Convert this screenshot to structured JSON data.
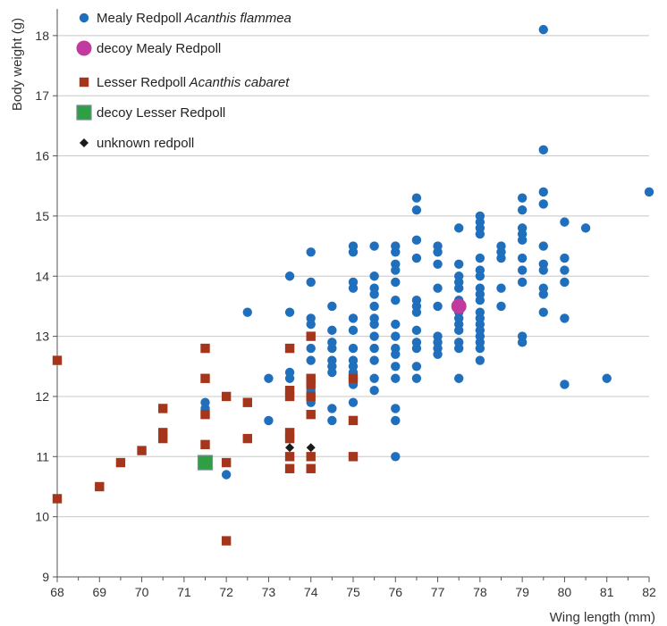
{
  "chart_data": {
    "type": "scatter",
    "title": "",
    "xlabel": "Wing length (mm)",
    "ylabel": "Body weight (g)",
    "xlim": [
      68,
      82
    ],
    "ylim": [
      9,
      18.5
    ],
    "x_ticks": [
      68,
      69,
      70,
      71,
      72,
      73,
      74,
      75,
      76,
      77,
      78,
      79,
      80,
      81,
      82
    ],
    "y_ticks": [
      9,
      10,
      11,
      12,
      13,
      14,
      15,
      16,
      17,
      18
    ],
    "grid": "horizontal",
    "legend_position": "top-left",
    "series": [
      {
        "key": "mealy",
        "name": "Mealy Redpoll",
        "name_italic": "Acanthis flammea",
        "marker": "circle",
        "color": "#1f6fbd",
        "points": [
          [
            71.5,
            11.9
          ],
          [
            71.5,
            11.8
          ],
          [
            72,
            10.7
          ],
          [
            72.5,
            13.4
          ],
          [
            73,
            12.3
          ],
          [
            73,
            11.6
          ],
          [
            73.5,
            14.0
          ],
          [
            73.5,
            13.4
          ],
          [
            73.5,
            12.4
          ],
          [
            73.5,
            12.3
          ],
          [
            73.5,
            11.3
          ],
          [
            74,
            14.4
          ],
          [
            74,
            13.9
          ],
          [
            74,
            13.3
          ],
          [
            74,
            13.2
          ],
          [
            74,
            12.8
          ],
          [
            74,
            12.6
          ],
          [
            74,
            12.1
          ],
          [
            74,
            11.9
          ],
          [
            74.5,
            13.5
          ],
          [
            74.5,
            13.1
          ],
          [
            74.5,
            12.9
          ],
          [
            74.5,
            12.8
          ],
          [
            74.5,
            12.6
          ],
          [
            74.5,
            12.5
          ],
          [
            74.5,
            12.4
          ],
          [
            74.5,
            11.8
          ],
          [
            74.5,
            11.6
          ],
          [
            75,
            14.5
          ],
          [
            75,
            14.4
          ],
          [
            75,
            13.9
          ],
          [
            75,
            13.8
          ],
          [
            75,
            13.3
          ],
          [
            75,
            13.1
          ],
          [
            75,
            12.8
          ],
          [
            75,
            12.6
          ],
          [
            75,
            12.5
          ],
          [
            75,
            12.4
          ],
          [
            75,
            12.3
          ],
          [
            75,
            12.2
          ],
          [
            75,
            11.9
          ],
          [
            75.5,
            14.5
          ],
          [
            75.5,
            14.0
          ],
          [
            75.5,
            13.8
          ],
          [
            75.5,
            13.7
          ],
          [
            75.5,
            13.5
          ],
          [
            75.5,
            13.3
          ],
          [
            75.5,
            13.2
          ],
          [
            75.5,
            13.0
          ],
          [
            75.5,
            12.8
          ],
          [
            75.5,
            12.6
          ],
          [
            75.5,
            12.3
          ],
          [
            75.5,
            12.1
          ],
          [
            76,
            14.5
          ],
          [
            76,
            14.4
          ],
          [
            76,
            14.2
          ],
          [
            76,
            14.1
          ],
          [
            76,
            13.9
          ],
          [
            76,
            13.6
          ],
          [
            76,
            13.2
          ],
          [
            76,
            13.0
          ],
          [
            76,
            12.8
          ],
          [
            76,
            12.7
          ],
          [
            76,
            12.5
          ],
          [
            76,
            12.3
          ],
          [
            76,
            11.8
          ],
          [
            76,
            11.6
          ],
          [
            76,
            11.0
          ],
          [
            76.5,
            15.3
          ],
          [
            76.5,
            15.1
          ],
          [
            76.5,
            14.6
          ],
          [
            76.5,
            14.3
          ],
          [
            76.5,
            13.6
          ],
          [
            76.5,
            13.5
          ],
          [
            76.5,
            13.4
          ],
          [
            76.5,
            13.1
          ],
          [
            76.5,
            12.9
          ],
          [
            76.5,
            12.8
          ],
          [
            76.5,
            12.5
          ],
          [
            76.5,
            12.3
          ],
          [
            77,
            14.5
          ],
          [
            77,
            14.4
          ],
          [
            77,
            14.2
          ],
          [
            77,
            13.8
          ],
          [
            77,
            13.5
          ],
          [
            77,
            13.0
          ],
          [
            77,
            12.9
          ],
          [
            77,
            12.8
          ],
          [
            77,
            12.7
          ],
          [
            77.5,
            14.8
          ],
          [
            77.5,
            14.2
          ],
          [
            77.5,
            14.0
          ],
          [
            77.5,
            13.9
          ],
          [
            77.5,
            13.8
          ],
          [
            77.5,
            13.6
          ],
          [
            77.5,
            13.4
          ],
          [
            77.5,
            13.3
          ],
          [
            77.5,
            13.2
          ],
          [
            77.5,
            13.1
          ],
          [
            77.5,
            12.9
          ],
          [
            77.5,
            12.8
          ],
          [
            77.5,
            12.3
          ],
          [
            78,
            15.0
          ],
          [
            78,
            14.9
          ],
          [
            78,
            14.8
          ],
          [
            78,
            14.7
          ],
          [
            78,
            14.3
          ],
          [
            78,
            14.1
          ],
          [
            78,
            14.0
          ],
          [
            78,
            13.8
          ],
          [
            78,
            13.7
          ],
          [
            78,
            13.6
          ],
          [
            78,
            13.4
          ],
          [
            78,
            13.3
          ],
          [
            78,
            13.2
          ],
          [
            78,
            13.1
          ],
          [
            78,
            13.0
          ],
          [
            78,
            12.9
          ],
          [
            78,
            12.8
          ],
          [
            78,
            12.6
          ],
          [
            78.5,
            14.5
          ],
          [
            78.5,
            14.4
          ],
          [
            78.5,
            14.3
          ],
          [
            78.5,
            13.8
          ],
          [
            78.5,
            13.5
          ],
          [
            79,
            15.3
          ],
          [
            79,
            15.1
          ],
          [
            79,
            14.8
          ],
          [
            79,
            14.7
          ],
          [
            79,
            14.6
          ],
          [
            79,
            14.3
          ],
          [
            79,
            14.1
          ],
          [
            79,
            13.9
          ],
          [
            79,
            13.0
          ],
          [
            79,
            12.9
          ],
          [
            79.5,
            18.1
          ],
          [
            79.5,
            16.1
          ],
          [
            79.5,
            15.4
          ],
          [
            79.5,
            15.2
          ],
          [
            79.5,
            14.5
          ],
          [
            79.5,
            14.2
          ],
          [
            79.5,
            14.1
          ],
          [
            79.5,
            13.8
          ],
          [
            79.5,
            13.7
          ],
          [
            79.5,
            13.4
          ],
          [
            80,
            14.9
          ],
          [
            80,
            14.3
          ],
          [
            80,
            14.1
          ],
          [
            80,
            13.9
          ],
          [
            80,
            13.3
          ],
          [
            80,
            12.2
          ],
          [
            80.5,
            14.8
          ],
          [
            81,
            12.3
          ],
          [
            82,
            15.4
          ]
        ]
      },
      {
        "key": "mealy-decoy",
        "name": "decoy Mealy Redpoll",
        "marker": "circle-large",
        "color": "#c23a9e",
        "points": [
          [
            77.5,
            13.5
          ]
        ]
      },
      {
        "key": "lesser",
        "name": "Lesser Redpoll",
        "name_italic": "Acanthis cabaret",
        "marker": "square",
        "color": "#a5361b",
        "points": [
          [
            68,
            12.6
          ],
          [
            68,
            10.3
          ],
          [
            69,
            10.5
          ],
          [
            69.5,
            10.9
          ],
          [
            70,
            11.1
          ],
          [
            70.5,
            11.8
          ],
          [
            70.5,
            11.4
          ],
          [
            70.5,
            11.3
          ],
          [
            71.5,
            12.8
          ],
          [
            71.5,
            12.3
          ],
          [
            71.5,
            11.7
          ],
          [
            71.5,
            11.2
          ],
          [
            72,
            12.0
          ],
          [
            72,
            10.9
          ],
          [
            72,
            9.6
          ],
          [
            72.5,
            11.9
          ],
          [
            72.5,
            11.3
          ],
          [
            73.5,
            12.8
          ],
          [
            73.5,
            12.1
          ],
          [
            73.5,
            12.0
          ],
          [
            73.5,
            11.4
          ],
          [
            73.5,
            11.3
          ],
          [
            73.5,
            11.0
          ],
          [
            73.5,
            10.8
          ],
          [
            74,
            13.0
          ],
          [
            74,
            12.3
          ],
          [
            74,
            12.2
          ],
          [
            74,
            12.0
          ],
          [
            74,
            11.7
          ],
          [
            74,
            11.0
          ],
          [
            74,
            10.8
          ],
          [
            75,
            12.3
          ],
          [
            75,
            11.6
          ],
          [
            75,
            11.0
          ]
        ]
      },
      {
        "key": "lesser-decoy",
        "name": "decoy Lesser Redpoll",
        "marker": "square-large",
        "color": "#2ea043",
        "points": [
          [
            71.5,
            10.9
          ]
        ]
      },
      {
        "key": "unknown",
        "name": "unknown redpoll",
        "marker": "diamond",
        "color": "#1a1a1a",
        "points": [
          [
            73.5,
            11.15
          ],
          [
            74,
            11.15
          ]
        ]
      }
    ]
  }
}
